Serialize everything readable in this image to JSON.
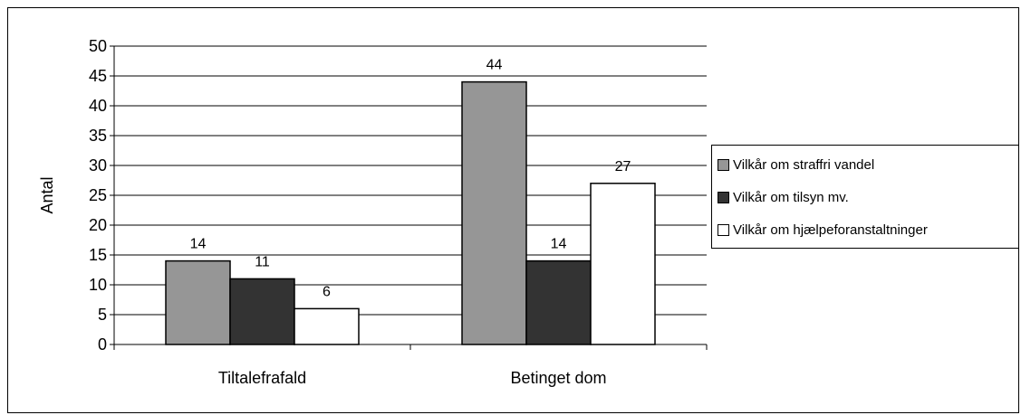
{
  "chart_data": {
    "type": "bar",
    "categories": [
      "Tiltalefrafald",
      "Betinget dom"
    ],
    "ylabel": "Antal",
    "ylim": [
      0,
      50
    ],
    "yticks": [
      0,
      5,
      10,
      15,
      20,
      25,
      30,
      35,
      40,
      45,
      50
    ],
    "grid": true,
    "legend_position": "right",
    "series": [
      {
        "name": "Vilkår om straffri vandel",
        "values": [
          14,
          44
        ],
        "color": "#969696"
      },
      {
        "name": "Vilkår om tilsyn mv.",
        "values": [
          11,
          14
        ],
        "color": "#333333"
      },
      {
        "name": "Vilkår om hjælpeforanstaltninger",
        "values": [
          6,
          27
        ],
        "color": "#ffffff"
      }
    ]
  }
}
